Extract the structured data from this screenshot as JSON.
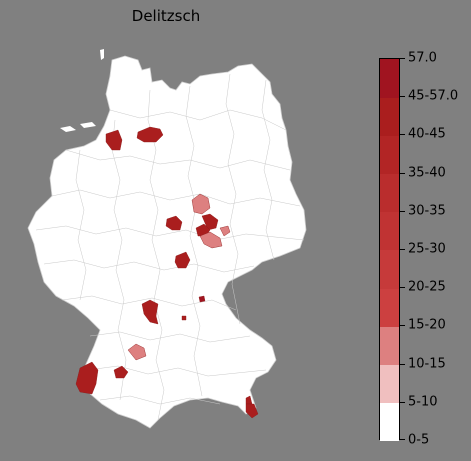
{
  "title": "Delitzsch",
  "legend": {
    "labels": [
      "0-5",
      "5-10",
      "10-15",
      "15-20",
      "20-25",
      "25-30",
      "30-35",
      "35-40",
      "40-45",
      "45-57.0",
      "57.0"
    ],
    "colors": [
      "#ffffff",
      "#f0bfbf",
      "#dd8080",
      "#cc4040",
      "#c63a3a",
      "#c03333",
      "#ba2d2d",
      "#b22525",
      "#aa1e1e",
      "#a01420",
      "#900a1a"
    ]
  },
  "map": {
    "base_color": "#ffffff",
    "border_color": "#b9b9b9",
    "highlighted_regions": [
      {
        "level": "40-45"
      },
      {
        "level": "40-45"
      },
      {
        "level": "40-45"
      },
      {
        "level": "10-15"
      },
      {
        "level": "40-45"
      },
      {
        "level": "40-45"
      },
      {
        "level": "10-15"
      },
      {
        "level": "10-15"
      },
      {
        "level": "40-45"
      },
      {
        "level": "45-57.0"
      },
      {
        "level": "40-45"
      },
      {
        "level": "40-45"
      },
      {
        "level": "10-15"
      },
      {
        "level": "40-45"
      },
      {
        "level": "40-45"
      },
      {
        "level": "40-45"
      },
      {
        "level": "40-45"
      }
    ]
  }
}
